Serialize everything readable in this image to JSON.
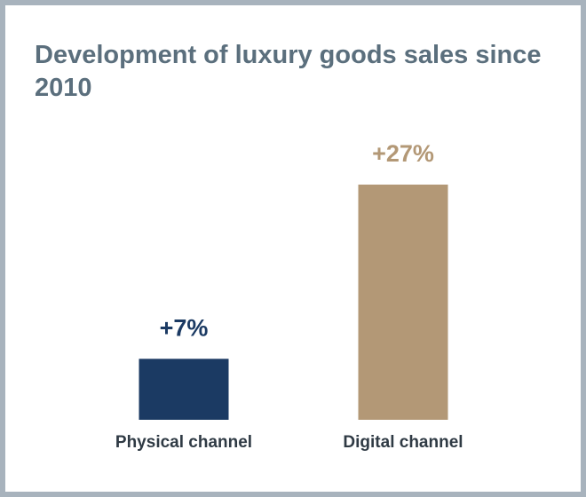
{
  "chart_data": {
    "type": "bar",
    "title": "Development of luxury goods sales since 2010",
    "categories": [
      "Physical channel",
      "Digital channel"
    ],
    "values": [
      7,
      27
    ],
    "value_labels": [
      "+7%",
      "+27%"
    ],
    "colors": [
      "#1b3a63",
      "#b39876"
    ],
    "ylim": [
      0,
      27
    ],
    "xlabel": "",
    "ylabel": "",
    "grid": false,
    "legend": "none"
  }
}
